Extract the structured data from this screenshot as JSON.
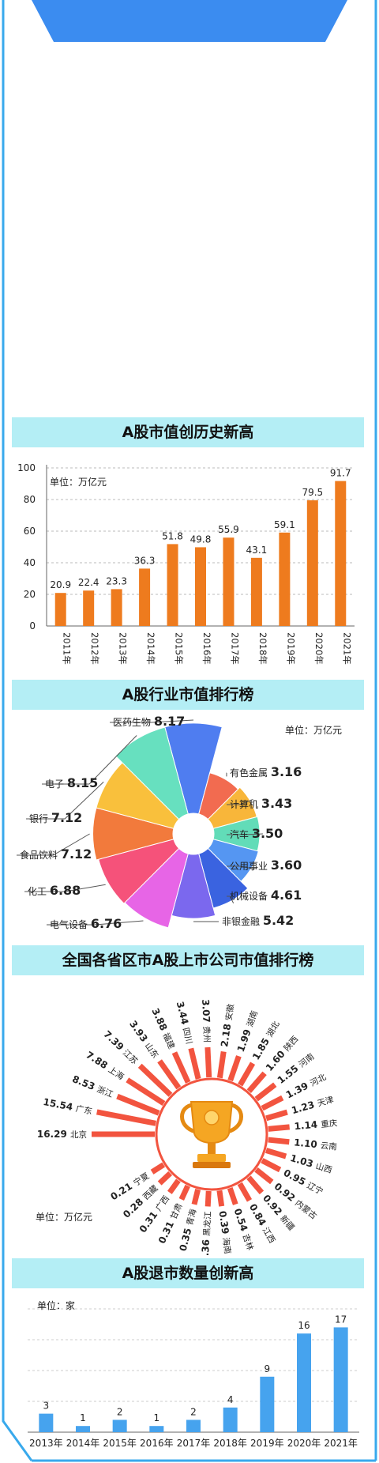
{
  "colors": {
    "header_blue": "#3b8cf0",
    "frame_blue": "#38a9ec",
    "title_bg": "#b4eef5",
    "bar_orange": "#ee7b1e",
    "bar_blue": "#46a3ee",
    "radial_red": "#f2543f"
  },
  "section1": {
    "title": "A股市值创历史新高",
    "chart_data": {
      "type": "bar",
      "unit": "单位：万亿元",
      "categories": [
        "2011年",
        "2012年",
        "2013年",
        "2014年",
        "2015年",
        "2016年",
        "2017年",
        "2018年",
        "2019年",
        "2020年",
        "2021年"
      ],
      "values": [
        20.9,
        22.4,
        23.3,
        36.3,
        51.8,
        49.8,
        55.9,
        43.1,
        59.1,
        79.5,
        91.7
      ],
      "value_labels": [
        "20.9",
        "22.4",
        "23.3",
        "36.3",
        "51.8",
        "49.8",
        "55.9",
        "43.1",
        "59.1",
        "79.5",
        "91.7"
      ],
      "yticks": [
        "0",
        "20",
        "40",
        "60",
        "80",
        "100"
      ],
      "ylim": [
        0,
        100
      ],
      "grid": true
    }
  },
  "section2": {
    "title": "A股行业市值排行榜",
    "chart_data": {
      "type": "pie",
      "subtype": "rose",
      "unit": "单位：万亿元",
      "slices": [
        {
          "name": "医药生物",
          "value": 8.17,
          "label": "8.17",
          "color": "#4f7df0"
        },
        {
          "name": "有色金属",
          "value": 3.16,
          "label": "3.16",
          "color": "#f26b50"
        },
        {
          "name": "计算机",
          "value": 3.43,
          "label": "3.43",
          "color": "#f8b63a"
        },
        {
          "name": "汽车",
          "value": 3.5,
          "label": "3.50",
          "color": "#62dcb8"
        },
        {
          "name": "公用事业",
          "value": 3.6,
          "label": "3.60",
          "color": "#5596f2"
        },
        {
          "name": "机械设备",
          "value": 4.61,
          "label": "4.61",
          "color": "#3a63e0"
        },
        {
          "name": "非银金融",
          "value": 5.42,
          "label": "5.42",
          "color": "#7b68ee"
        },
        {
          "name": "电气设备",
          "value": 6.76,
          "label": "6.76",
          "color": "#e765e6"
        },
        {
          "name": "化工",
          "value": 6.88,
          "label": "6.88",
          "color": "#f5527a"
        },
        {
          "name": "食品饮料",
          "value": 7.12,
          "label": "7.12",
          "color": "#f27a3c"
        },
        {
          "name": "银行",
          "value": 7.12,
          "label": "7.12",
          "color": "#f9c03c"
        },
        {
          "name": "电子",
          "value": 8.15,
          "label": "8.15",
          "color": "#67e0bf"
        }
      ]
    }
  },
  "section3": {
    "title": "全国各省区市A股上市公司市值排行榜",
    "icon": "trophy-icon",
    "chart_data": {
      "type": "bar",
      "subtype": "radial",
      "unit": "单位：万亿元",
      "items": [
        {
          "name": "北京",
          "value": 16.29,
          "label": "16.29"
        },
        {
          "name": "广东",
          "value": 15.54,
          "label": "15.54"
        },
        {
          "name": "浙江",
          "value": 8.53,
          "label": "8.53"
        },
        {
          "name": "上海",
          "value": 7.88,
          "label": "7.88"
        },
        {
          "name": "江苏",
          "value": 7.39,
          "label": "7.39"
        },
        {
          "name": "山东",
          "value": 3.93,
          "label": "3.93"
        },
        {
          "name": "福建",
          "value": 3.88,
          "label": "3.88"
        },
        {
          "name": "四川",
          "value": 3.44,
          "label": "3.44"
        },
        {
          "name": "贵州",
          "value": 3.07,
          "label": "3.07"
        },
        {
          "name": "安徽",
          "value": 2.18,
          "label": "2.18"
        },
        {
          "name": "湖南",
          "value": 1.99,
          "label": "1.99"
        },
        {
          "name": "湖北",
          "value": 1.85,
          "label": "1.85"
        },
        {
          "name": "陕西",
          "value": 1.6,
          "label": "1.60"
        },
        {
          "name": "河南",
          "value": 1.55,
          "label": "1.55"
        },
        {
          "name": "河北",
          "value": 1.39,
          "label": "1.39"
        },
        {
          "name": "天津",
          "value": 1.23,
          "label": "1.23"
        },
        {
          "name": "重庆",
          "value": 1.14,
          "label": "1.14"
        },
        {
          "name": "云南",
          "value": 1.1,
          "label": "1.10"
        },
        {
          "name": "山西",
          "value": 1.03,
          "label": "1.03"
        },
        {
          "name": "辽宁",
          "value": 0.95,
          "label": "0.95"
        },
        {
          "name": "内蒙古",
          "value": 0.92,
          "label": "0.92"
        },
        {
          "name": "新疆",
          "value": 0.92,
          "label": "0.92"
        },
        {
          "name": "江西",
          "value": 0.84,
          "label": "0.84"
        },
        {
          "name": "吉林",
          "value": 0.54,
          "label": "0.54"
        },
        {
          "name": "海南",
          "value": 0.39,
          "label": "0.39"
        },
        {
          "name": "黑龙江",
          "value": 0.36,
          "label": "0.36"
        },
        {
          "name": "青海",
          "value": 0.35,
          "label": "0.35"
        },
        {
          "name": "甘肃",
          "value": 0.31,
          "label": "0.31"
        },
        {
          "name": "广西",
          "value": 0.31,
          "label": "0.31"
        },
        {
          "name": "西藏",
          "value": 0.28,
          "label": "0.28"
        },
        {
          "name": "宁夏",
          "value": 0.21,
          "label": "0.21"
        }
      ]
    }
  },
  "section4": {
    "title": "A股退市数量创新高",
    "chart_data": {
      "type": "bar",
      "unit": "单位：家",
      "categories": [
        "2013年",
        "2014年",
        "2015年",
        "2016年",
        "2017年",
        "2018年",
        "2019年",
        "2020年",
        "2021年"
      ],
      "values": [
        3,
        1,
        2,
        1,
        2,
        4,
        9,
        16,
        17
      ],
      "value_labels": [
        "3",
        "1",
        "2",
        "1",
        "2",
        "4",
        "9",
        "16",
        "17"
      ],
      "ylim": [
        0,
        20
      ],
      "grid": true
    }
  }
}
